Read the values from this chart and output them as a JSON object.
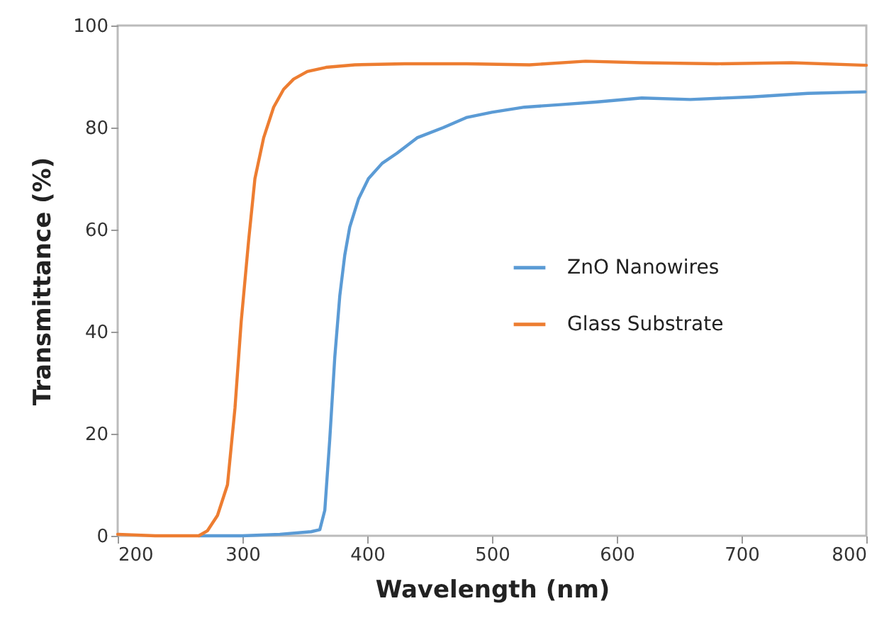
{
  "chart_data": {
    "type": "line",
    "xlabel": "Wavelength (nm)",
    "ylabel": "Transmittance (%)",
    "xlim": [
      200,
      800
    ],
    "xticks": [
      200,
      300,
      400,
      500,
      600,
      700,
      800
    ],
    "ylim": [
      0,
      100
    ],
    "yticks": [
      0,
      20,
      40,
      60,
      80,
      100
    ],
    "grid": false,
    "legend": "right",
    "marker": "none",
    "line_style": "solid",
    "series": [
      {
        "name": "ZnO Nanowires",
        "color": "#5b9bd5",
        "x": [
          265,
          300,
          330,
          355,
          362,
          366,
          370,
          374,
          378,
          382,
          386,
          393,
          401,
          412,
          424,
          440,
          461,
          480,
          500,
          526,
          555,
          583,
          620,
          659,
          708,
          753,
          799
        ],
        "values": [
          0,
          0,
          0.3,
          0.8,
          1.2,
          5,
          19,
          35,
          47,
          55,
          60.5,
          66,
          70,
          73,
          75,
          78,
          80,
          82,
          83,
          84,
          84.5,
          85,
          85.8,
          85.5,
          86,
          86.7,
          87
        ]
      },
      {
        "name": "Glass Substrate",
        "color": "#ed7d31",
        "x": [
          200,
          230,
          265,
          272,
          280,
          288,
          294,
          299,
          305,
          310,
          317,
          325,
          333,
          341,
          352,
          367,
          390,
          430,
          480,
          530,
          575,
          620,
          680,
          740,
          800
        ],
        "values": [
          0.3,
          0,
          0,
          1,
          4,
          10,
          25,
          42,
          58,
          70,
          78,
          84,
          87.5,
          89.5,
          91,
          91.8,
          92.3,
          92.5,
          92.5,
          92.3,
          93,
          92.7,
          92.5,
          92.7,
          92.2
        ]
      }
    ]
  }
}
